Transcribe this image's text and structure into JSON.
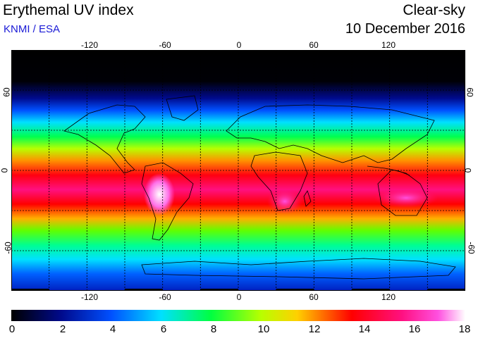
{
  "header": {
    "title": "Erythemal UV index",
    "credit": "KNMI / ESA",
    "mode": "Clear-sky",
    "date": "10 December 2016"
  },
  "map": {
    "longitude_labels": [
      "-120",
      "-60",
      "0",
      "60",
      "120"
    ],
    "latitude_labels": [
      "60",
      "0",
      "-60"
    ],
    "longitude_range": [
      -180,
      180
    ],
    "latitude_range": [
      -90,
      90
    ],
    "graticule": "dotted"
  },
  "colorbar": {
    "ticks": [
      "0",
      "2",
      "4",
      "6",
      "8",
      "10",
      "12",
      "14",
      "16",
      "18"
    ],
    "range": [
      0,
      18
    ],
    "colors": [
      "#000000",
      "#000a8c",
      "#0050ff",
      "#00e0ff",
      "#00ff40",
      "#b8ff00",
      "#ffd000",
      "#ff0000",
      "#ff1080",
      "#ff50e0",
      "#ffffff"
    ]
  }
}
